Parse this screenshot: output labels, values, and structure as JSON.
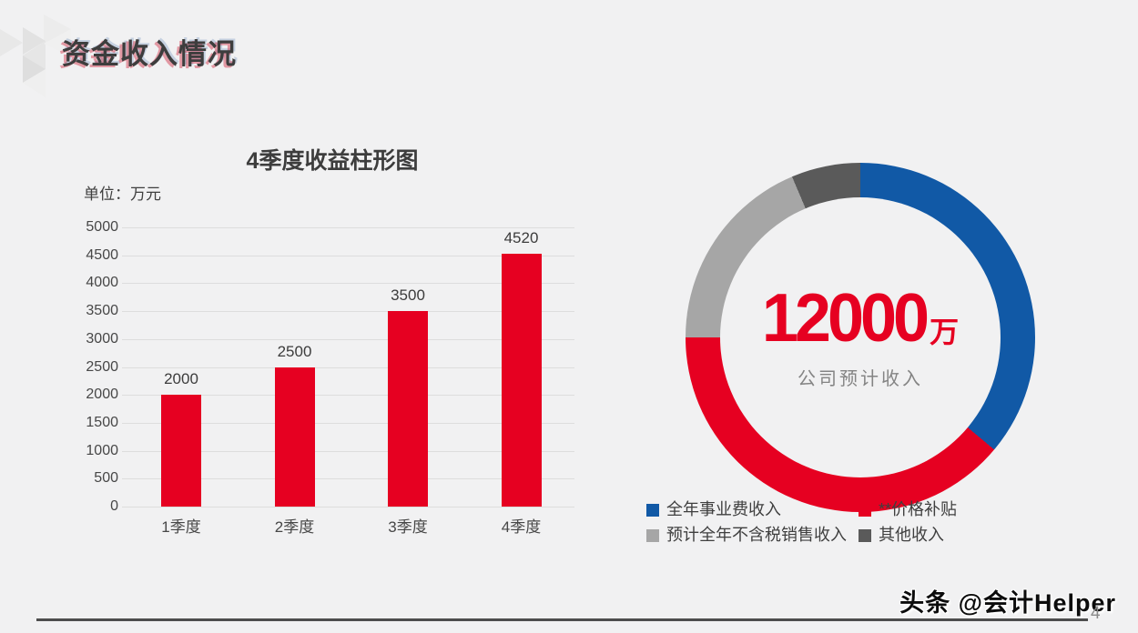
{
  "slide": {
    "title": "资金收入情况",
    "watermark": "头条 @会计Helper",
    "page_number": "4",
    "background_color": "#f1f1f2",
    "accent_red": "#e60021",
    "accent_blue": "#1159a6"
  },
  "chart_data": [
    {
      "type": "bar",
      "title": "4季度收益柱形图",
      "unit_label": "单位：万元",
      "categories": [
        "1季度",
        "2季度",
        "3季度",
        "4季度"
      ],
      "values": [
        2000,
        2500,
        3500,
        4520
      ],
      "ylim": [
        0,
        5000
      ],
      "ytick_step": 500,
      "bar_color": "#e60021",
      "grid": true,
      "legend_position": "none"
    },
    {
      "type": "donut",
      "center_value": "12000",
      "center_unit": "万",
      "center_caption": "公司预计收入",
      "segments": [
        {
          "label": "全年事业费收入",
          "color": "#1159a6",
          "start_deg": 0,
          "end_deg": 130,
          "percent_est": 36.1
        },
        {
          "label": "**价格补贴",
          "color": "#e60021",
          "start_deg": 130,
          "end_deg": 270,
          "percent_est": 38.9
        },
        {
          "label": "预计全年不含税销售收入",
          "color": "#a6a6a6",
          "start_deg": 270,
          "end_deg": 337,
          "percent_est": 18.6
        },
        {
          "label": "其他收入",
          "color": "#5a5a5a",
          "start_deg": 337,
          "end_deg": 360,
          "percent_est": 6.4
        }
      ],
      "legend_position": "bottom"
    }
  ]
}
